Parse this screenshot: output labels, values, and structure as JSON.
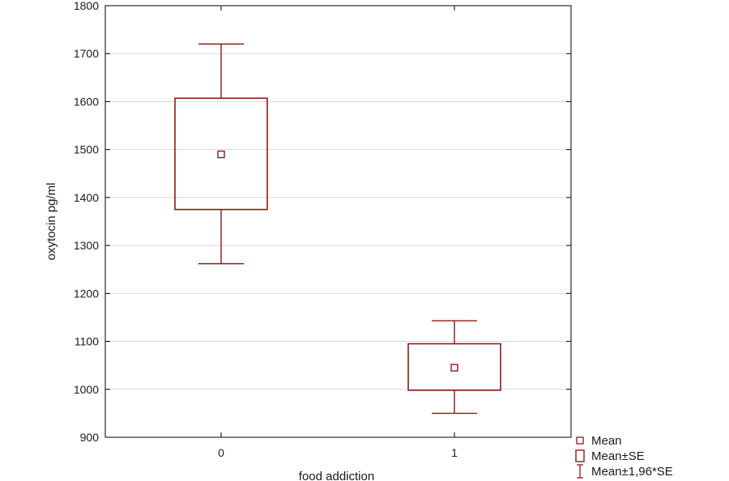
{
  "chart_data": {
    "type": "box",
    "xlabel": "food addiction",
    "ylabel": "oxytocin pg/ml",
    "categories": [
      "0",
      "1"
    ],
    "ylim": [
      900,
      1800
    ],
    "yticks": [
      900,
      1000,
      1100,
      1200,
      1300,
      1400,
      1500,
      1600,
      1700,
      1800
    ],
    "grid": true,
    "series": [
      {
        "category": "0",
        "mean": 1490,
        "mean_minus_se": 1375,
        "mean_plus_se": 1607,
        "ci_low": 1262,
        "ci_high": 1720
      },
      {
        "category": "1",
        "mean": 1045,
        "mean_minus_se": 998,
        "mean_plus_se": 1095,
        "ci_low": 950,
        "ci_high": 1143
      }
    ],
    "legend": {
      "position": "bottom-right",
      "items": [
        {
          "label": "Mean",
          "symbol": "small-square"
        },
        {
          "label": "Mean±SE",
          "symbol": "box"
        },
        {
          "label": "Mean±1,96*SE",
          "symbol": "whisker"
        }
      ]
    },
    "colors": {
      "series": "#8b1a1a",
      "axis": "#000000",
      "grid": "#d9d9d9",
      "text": "#1a1a1a"
    }
  }
}
